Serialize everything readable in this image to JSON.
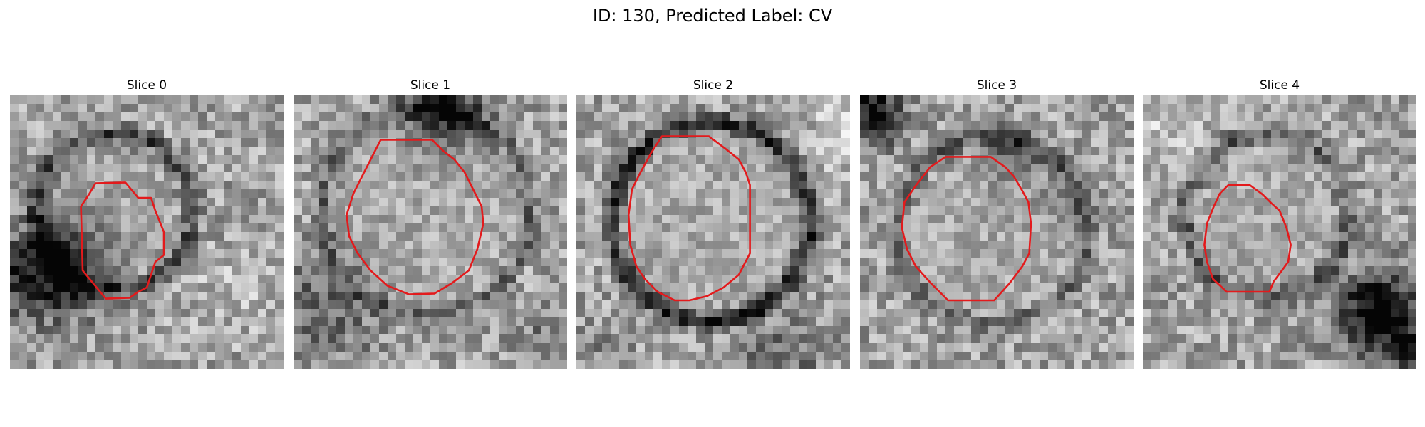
{
  "figure": {
    "title": "ID: 130, Predicted Label: CV",
    "contour_color": "#e31a1c"
  },
  "panels": [
    {
      "title": "Slice 0"
    },
    {
      "title": "Slice 1"
    },
    {
      "title": "Slice 2"
    },
    {
      "title": "Slice 3"
    },
    {
      "title": "Slice 4"
    }
  ]
}
